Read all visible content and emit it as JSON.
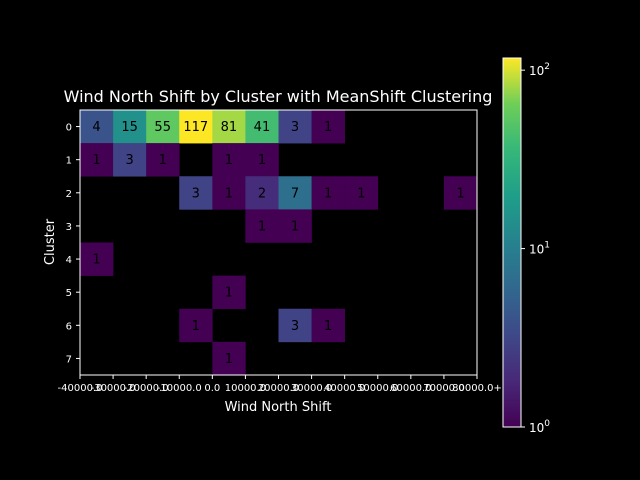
{
  "chart_data": {
    "type": "heatmap",
    "title": "Wind North Shift by Cluster with MeanShift Clustering",
    "xlabel": "Wind North Shift",
    "ylabel": "Cluster",
    "x_tick_labels": [
      "-40000.0",
      "-30000.0",
      "-20000.0",
      "-10000.0",
      "0.0",
      "10000.0",
      "20000.0",
      "30000.0",
      "40000.0",
      "50000.0",
      "60000.0",
      "70000.0",
      "80000.0+"
    ],
    "y_tick_labels": [
      "0",
      "1",
      "2",
      "3",
      "4",
      "5",
      "6",
      "7"
    ],
    "values": [
      [
        4,
        15,
        55,
        117,
        81,
        41,
        3,
        1,
        null,
        null,
        null,
        null
      ],
      [
        1,
        3,
        1,
        null,
        1,
        1,
        null,
        null,
        null,
        null,
        null,
        null
      ],
      [
        null,
        null,
        null,
        3,
        1,
        2,
        7,
        1,
        1,
        null,
        null,
        1
      ],
      [
        null,
        null,
        null,
        null,
        null,
        1,
        1,
        null,
        null,
        null,
        null,
        null
      ],
      [
        1,
        null,
        null,
        null,
        null,
        null,
        null,
        null,
        null,
        null,
        null,
        null
      ],
      [
        null,
        null,
        null,
        null,
        1,
        null,
        null,
        null,
        null,
        null,
        null,
        null
      ],
      [
        null,
        null,
        null,
        1,
        null,
        null,
        3,
        1,
        null,
        null,
        null,
        null
      ],
      [
        null,
        null,
        null,
        null,
        1,
        null,
        null,
        null,
        null,
        null,
        null,
        null
      ]
    ],
    "colorbar": {
      "scale": "log",
      "range": [
        1,
        117
      ],
      "colormap": "viridis",
      "tick_labels": [
        {
          "base": "10",
          "exp": "0",
          "value": 1
        },
        {
          "base": "10",
          "exp": "1",
          "value": 10
        },
        {
          "base": "10",
          "exp": "2",
          "value": 100
        }
      ]
    },
    "background": "#000000",
    "text_color": "#ffffff"
  }
}
